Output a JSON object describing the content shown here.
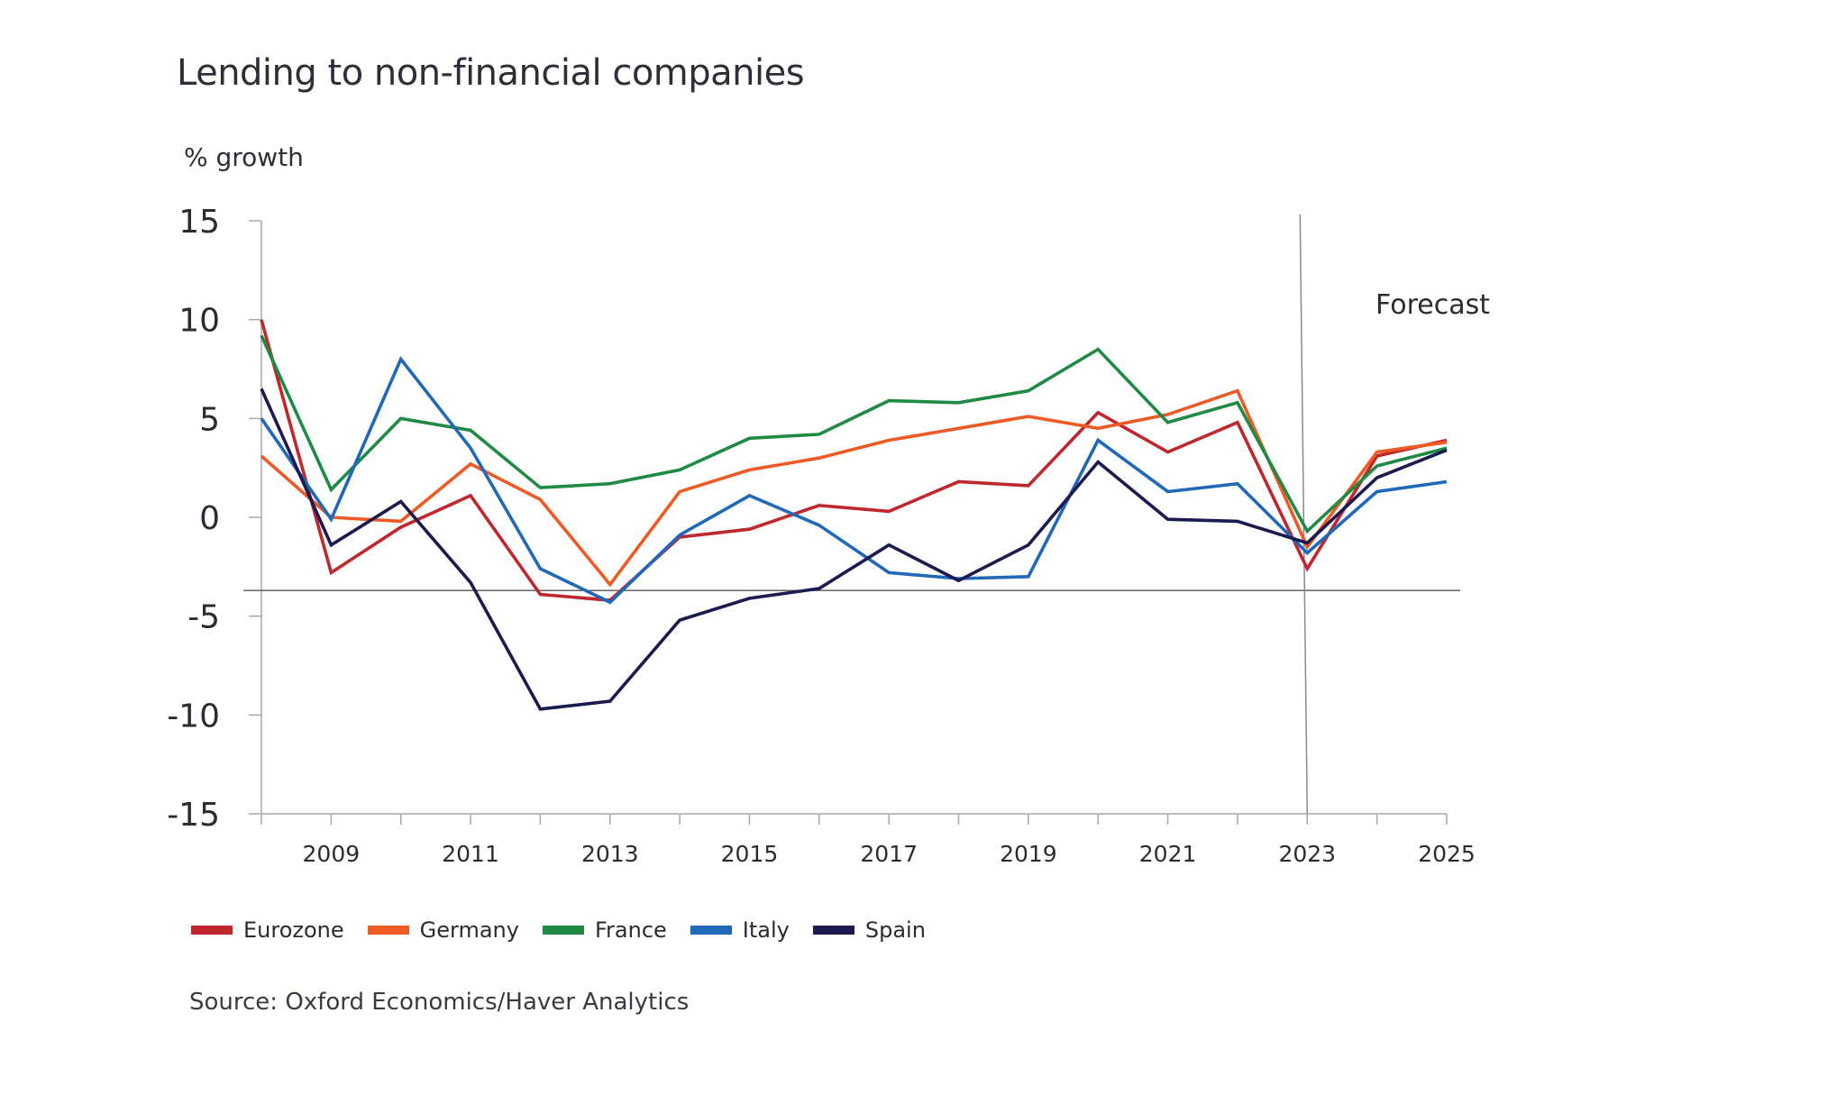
{
  "title": "Lending to non-financial companies",
  "ylabel": "% growth",
  "source": "Source: Oxford Economics/Haver Analytics",
  "chart_data": {
    "type": "line",
    "title": "Lending to non-financial companies",
    "xlabel": "",
    "ylabel": "% growth",
    "ylim": [
      -15,
      15
    ],
    "yticks": [
      15,
      10,
      5,
      0,
      -5,
      -10,
      -15
    ],
    "x": [
      2008,
      2009,
      2010,
      2011,
      2012,
      2013,
      2014,
      2015,
      2016,
      2017,
      2018,
      2019,
      2020,
      2021,
      2022,
      2023,
      2024,
      2025
    ],
    "xtick_labels": [
      "2009",
      "2011",
      "2013",
      "2015",
      "2017",
      "2019",
      "2021",
      "2023",
      "2025"
    ],
    "grid": false,
    "legend": "bottom-left",
    "reference_line_y": -3.7,
    "forecast_start": 2023,
    "annotations": [
      {
        "text": "Forecast",
        "x": 2024.8,
        "y": 10.3
      }
    ],
    "series": [
      {
        "name": "Eurozone",
        "color": "#C0272D",
        "values": [
          10.0,
          -2.8,
          -0.5,
          1.1,
          -3.9,
          -4.2,
          -1.0,
          -0.6,
          0.6,
          0.3,
          1.8,
          1.6,
          5.3,
          3.3,
          4.8,
          -2.6,
          3.1,
          3.9
        ]
      },
      {
        "name": "Germany",
        "color": "#EE5A24",
        "values": [
          3.1,
          0.0,
          -0.2,
          2.7,
          0.9,
          -3.4,
          1.3,
          2.4,
          3.0,
          3.9,
          4.5,
          5.1,
          4.5,
          5.2,
          6.4,
          -1.5,
          3.3,
          3.8
        ]
      },
      {
        "name": "France",
        "color": "#1E8A44",
        "values": [
          9.2,
          1.4,
          5.0,
          4.4,
          1.5,
          1.7,
          2.4,
          4.0,
          4.2,
          5.9,
          5.8,
          6.4,
          8.5,
          4.8,
          5.8,
          -0.7,
          2.6,
          3.5
        ]
      },
      {
        "name": "Italy",
        "color": "#2068B8",
        "values": [
          5.0,
          -0.1,
          8.0,
          3.5,
          -2.6,
          -4.3,
          -0.9,
          1.1,
          -0.4,
          -2.8,
          -3.1,
          -3.0,
          3.9,
          1.3,
          1.7,
          -1.8,
          1.3,
          1.8
        ]
      },
      {
        "name": "Spain",
        "color": "#1C1B4F",
        "values": [
          6.5,
          -1.4,
          0.8,
          -3.3,
          -9.7,
          -9.3,
          -5.2,
          -4.1,
          -3.6,
          -1.4,
          -3.2,
          -1.4,
          2.8,
          -0.1,
          -0.2,
          -1.3,
          2.0,
          3.4
        ]
      }
    ]
  }
}
